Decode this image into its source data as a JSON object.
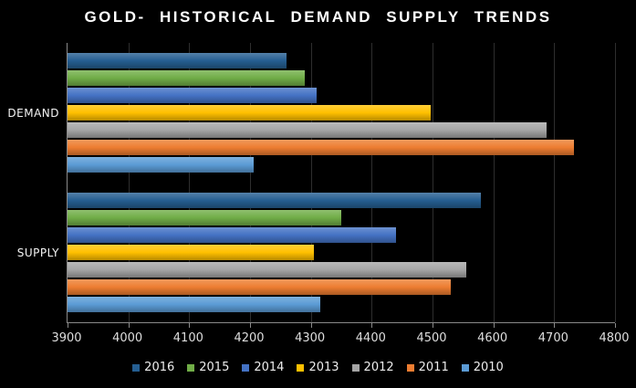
{
  "title": "GOLD- HISTORICAL DEMAND SUPPLY TRENDS",
  "colors": {
    "background": "#000000",
    "axis_line": "#8A8A8A",
    "gridline": "#2E2E2E",
    "tick_label": "#DEDEDE",
    "category_label": "#F5F5F5",
    "legend_label": "#EDEDED",
    "title": "#FFFFFF"
  },
  "chart_data": {
    "type": "bar",
    "orientation": "horizontal",
    "title": "GOLD- HISTORICAL DEMAND SUPPLY TRENDS",
    "categories": [
      "DEMAND",
      "SUPPLY"
    ],
    "series": [
      {
        "name": "2016",
        "color": "#255E91",
        "values": [
          4260,
          4580
        ]
      },
      {
        "name": "2015",
        "color": "#70AD47",
        "values": [
          4290,
          4350
        ]
      },
      {
        "name": "2014",
        "color": "#4472C4",
        "values": [
          4310,
          4440
        ]
      },
      {
        "name": "2013",
        "color": "#FFC000",
        "values": [
          4497,
          4305
        ]
      },
      {
        "name": "2012",
        "color": "#A5A5A5",
        "values": [
          4687,
          4555
        ]
      },
      {
        "name": "2011",
        "color": "#ED7D31",
        "values": [
          4733,
          4530
        ]
      },
      {
        "name": "2010",
        "color": "#5B9BD5",
        "values": [
          4206,
          4315
        ]
      }
    ],
    "xticks": [
      3900,
      4000,
      4100,
      4200,
      4300,
      4400,
      4500,
      4600,
      4700,
      4800
    ],
    "xlim": [
      3900,
      4800
    ],
    "grid": true,
    "legend_position": "bottom",
    "legend": [
      "2016",
      "2015",
      "2014",
      "2013",
      "2012",
      "2011",
      "2010"
    ],
    "bar_draw_order_per_category": "2016 top to 2010 bottom"
  }
}
